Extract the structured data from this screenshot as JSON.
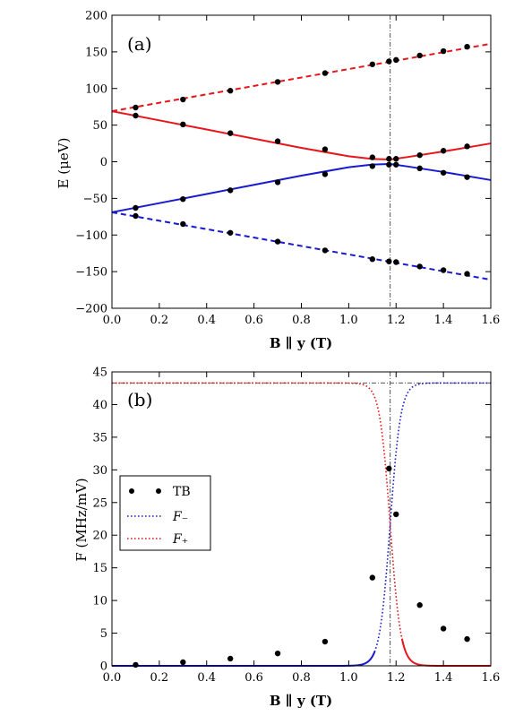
{
  "chart_data": [
    {
      "type": "line",
      "panel_label": "(a)",
      "xlabel": "B ∥ y (T)",
      "ylabel": "E (μeV)",
      "xlim": [
        0.0,
        1.6
      ],
      "ylim": [
        -200,
        200
      ],
      "x_ticks": [
        "0.0",
        "0.2",
        "0.4",
        "0.6",
        "0.8",
        "1.0",
        "1.2",
        "1.4",
        "1.6"
      ],
      "y_ticks": [
        "−200",
        "−150",
        "−100",
        "−50",
        "0",
        "50",
        "100",
        "150",
        "200"
      ],
      "vline_x": 1.175,
      "series": [
        {
          "color": "#e8161b",
          "style": "dashed",
          "x": [
            0.0,
            1.6
          ],
          "y": [
            69,
            161
          ]
        },
        {
          "color": "#e8161b",
          "style": "solid",
          "x": [
            0.0,
            0.2,
            0.4,
            0.6,
            0.8,
            1.0,
            1.1,
            1.175,
            1.25,
            1.4,
            1.6
          ],
          "y": [
            69,
            56.5,
            44,
            31.5,
            19,
            7.5,
            3.8,
            3.0,
            6.5,
            14,
            25
          ]
        },
        {
          "color": "#1a1acf",
          "style": "solid",
          "x": [
            0.0,
            0.2,
            0.4,
            0.6,
            0.8,
            1.0,
            1.1,
            1.175,
            1.25,
            1.4,
            1.6
          ],
          "y": [
            -69,
            -56.5,
            -44,
            -31.5,
            -19,
            -7.5,
            -3.8,
            -3.0,
            -6.5,
            -14,
            -25
          ]
        },
        {
          "color": "#1a1acf",
          "style": "dashed",
          "x": [
            0.0,
            1.6
          ],
          "y": [
            -69,
            -161
          ]
        }
      ],
      "points": {
        "color": "#000000",
        "x": [
          0.1,
          0.3,
          0.5,
          0.7,
          0.9,
          1.1,
          1.17,
          1.2,
          1.3,
          1.4,
          1.5,
          0.1,
          0.3,
          0.5,
          0.7,
          0.9,
          1.1,
          1.17,
          1.2,
          1.3,
          1.4,
          1.5,
          0.1,
          0.3,
          0.5,
          0.7,
          0.9,
          1.1,
          1.17,
          1.2,
          1.3,
          1.4,
          1.5,
          0.1,
          0.3,
          0.5,
          0.7,
          0.9,
          1.1,
          1.17,
          1.2,
          1.3,
          1.4,
          1.5
        ],
        "y": [
          74,
          85,
          97,
          109,
          121,
          133,
          137,
          139,
          145,
          151,
          157,
          63,
          51,
          39,
          28,
          17,
          6,
          4,
          4,
          9,
          15,
          21,
          -63,
          -51,
          -39,
          -28,
          -17,
          -6,
          -4,
          -4,
          -9,
          -15,
          -21,
          -74,
          -85,
          -97,
          -109,
          -121,
          -133,
          -136,
          -137,
          -143,
          -148,
          -153
        ]
      }
    },
    {
      "type": "line",
      "panel_label": "(b)",
      "xlabel": "B ∥ y (T)",
      "ylabel": "F (MHz/mV)",
      "xlim": [
        0.0,
        1.6
      ],
      "ylim": [
        0,
        45
      ],
      "x_ticks": [
        "0.0",
        "0.2",
        "0.4",
        "0.6",
        "0.8",
        "1.0",
        "1.2",
        "1.4",
        "1.6"
      ],
      "y_ticks": [
        "0",
        "5",
        "10",
        "15",
        "20",
        "25",
        "30",
        "35",
        "40",
        "45"
      ],
      "vline_x": 1.175,
      "hline_y": 43.3,
      "legend": {
        "position": "center-left",
        "entries": [
          {
            "label": "TB",
            "kind": "points",
            "color": "#000000"
          },
          {
            "label": "F₋",
            "kind": "dotted",
            "color": "#1a1acf"
          },
          {
            "label": "F₊",
            "kind": "dotted",
            "color": "#e8161b"
          }
        ]
      },
      "series": [
        {
          "name": "F₋",
          "color": "#1a1acf",
          "style": "dotted",
          "param": "F_minus"
        },
        {
          "name": "F₊",
          "color": "#e8161b",
          "style": "dotted",
          "param": "F_plus"
        },
        {
          "color": "#1a1acf",
          "style": "solid",
          "param": "F_minus",
          "x_range": [
            0.0,
            1.11
          ]
        },
        {
          "color": "#e8161b",
          "style": "solid",
          "param": "F_plus",
          "x_range": [
            1.225,
            1.6
          ]
        }
      ],
      "model": {
        "Fmax": 43.3,
        "Bc": 1.175,
        "width": 0.02225
      },
      "points": {
        "color": "#000000",
        "x": [
          0.1,
          0.3,
          0.5,
          0.7,
          0.9,
          1.1,
          1.17,
          1.2,
          1.3,
          1.4,
          1.5
        ],
        "y": [
          0.15,
          0.55,
          1.1,
          1.9,
          3.7,
          13.5,
          30.2,
          23.2,
          9.3,
          5.7,
          4.1
        ]
      }
    }
  ]
}
